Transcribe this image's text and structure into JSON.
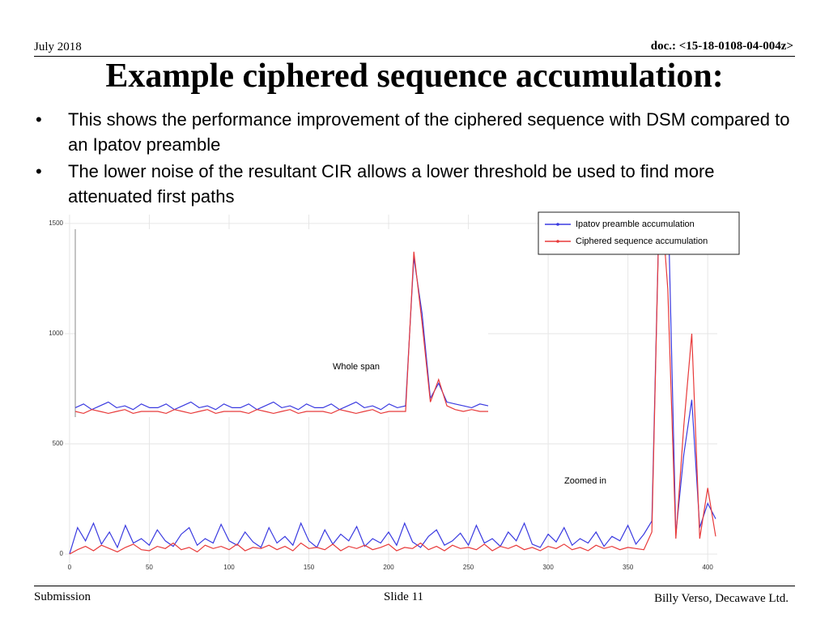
{
  "header": {
    "date": "July 2018",
    "doc": "doc.: <15-18-0108-04-004z>"
  },
  "title": "Example ciphered sequence accumulation:",
  "bullets": [
    "This shows the performance improvement of the ciphered sequence with DSM compared to an Ipatov preamble",
    "The lower noise of the resultant CIR allows a lower threshold be used to find more attenuated first paths"
  ],
  "footer": {
    "left": "Submission",
    "center": "Slide 11",
    "right": "Billy Verso,  Decawave Ltd."
  },
  "chart_data": [
    {
      "type": "line",
      "annotation": "Zoomed in",
      "x": [
        0,
        5,
        10,
        15,
        20,
        25,
        30,
        35,
        40,
        45,
        50,
        55,
        60,
        65,
        70,
        75,
        80,
        85,
        90,
        95,
        100,
        105,
        110,
        115,
        120,
        125,
        130,
        135,
        140,
        145,
        150,
        155,
        160,
        165,
        170,
        175,
        180,
        185,
        190,
        195,
        200,
        205,
        210,
        215,
        220,
        225,
        230,
        235,
        240,
        245,
        250,
        255,
        260,
        265,
        270,
        275,
        280,
        285,
        290,
        295,
        300,
        305,
        310,
        315,
        320,
        325,
        330,
        335,
        340,
        345,
        350,
        355,
        360,
        365,
        370,
        375,
        380,
        385,
        390,
        395,
        400,
        405
      ],
      "series": [
        {
          "name": "Ipatov preamble accumulation",
          "color": "#3a3ae0",
          "values": [
            0,
            120,
            60,
            140,
            45,
            100,
            30,
            130,
            50,
            70,
            40,
            110,
            60,
            35,
            90,
            120,
            40,
            70,
            50,
            135,
            60,
            40,
            100,
            55,
            30,
            120,
            50,
            80,
            40,
            140,
            60,
            30,
            110,
            45,
            90,
            60,
            125,
            35,
            70,
            50,
            100,
            40,
            140,
            55,
            30,
            80,
            110,
            40,
            60,
            95,
            40,
            130,
            50,
            70,
            35,
            100,
            60,
            140,
            45,
            30,
            90,
            55,
            120,
            40,
            70,
            50,
            100,
            35,
            80,
            60,
            130,
            45,
            90,
            150,
            1700,
            1650,
            90,
            450,
            700,
            120,
            230,
            160
          ]
        },
        {
          "name": "Ciphered sequence accumulation",
          "color": "#e83a3a",
          "values": [
            0,
            20,
            35,
            15,
            40,
            25,
            10,
            30,
            45,
            20,
            15,
            35,
            25,
            50,
            20,
            30,
            10,
            40,
            25,
            35,
            20,
            45,
            15,
            30,
            25,
            40,
            20,
            35,
            15,
            50,
            25,
            30,
            20,
            45,
            15,
            35,
            25,
            40,
            20,
            30,
            45,
            15,
            30,
            25,
            50,
            20,
            35,
            15,
            40,
            25,
            30,
            20,
            45,
            15,
            35,
            25,
            40,
            20,
            30,
            15,
            35,
            25,
            45,
            20,
            30,
            15,
            40,
            25,
            35,
            20,
            30,
            25,
            20,
            100,
            1700,
            1200,
            70,
            580,
            1000,
            70,
            300,
            80
          ]
        }
      ],
      "xlim": [
        -3,
        406
      ],
      "ylim": [
        -40,
        1540
      ],
      "xticks": [
        0,
        50,
        100,
        150,
        200,
        250,
        300,
        350,
        400
      ],
      "yticks": [
        0,
        500,
        1000,
        1500
      ],
      "grid": true,
      "legend": "upper right"
    },
    {
      "type": "line",
      "annotation": "Whole span",
      "x": [
        0,
        2,
        4,
        6,
        8,
        10,
        12,
        14,
        16,
        18,
        20,
        22,
        24,
        26,
        28,
        30,
        32,
        34,
        36,
        38,
        40,
        42,
        44,
        46,
        48,
        50,
        52,
        54,
        56,
        58,
        60,
        62,
        64,
        66,
        68,
        70,
        72,
        74,
        76,
        78,
        80,
        82,
        84,
        86,
        88,
        90,
        92,
        94,
        96,
        98,
        100
      ],
      "series": [
        {
          "color": "#3a3ae0",
          "values": [
            5,
            7,
            4,
            6,
            8,
            5,
            6,
            4,
            7,
            5,
            5,
            7,
            4,
            6,
            8,
            5,
            6,
            4,
            7,
            5,
            5,
            7,
            4,
            6,
            8,
            5,
            6,
            4,
            7,
            5,
            5,
            7,
            4,
            6,
            8,
            5,
            6,
            4,
            7,
            5,
            6,
            85,
            55,
            10,
            18,
            8,
            7,
            6,
            5,
            7,
            6
          ]
        },
        {
          "color": "#e83a3a",
          "values": [
            3,
            2,
            4,
            3,
            2,
            3,
            4,
            2,
            3,
            3,
            3,
            2,
            4,
            3,
            2,
            3,
            4,
            2,
            3,
            3,
            3,
            2,
            4,
            3,
            2,
            3,
            4,
            2,
            3,
            3,
            3,
            2,
            4,
            3,
            2,
            3,
            4,
            2,
            3,
            3,
            3,
            88,
            50,
            8,
            20,
            6,
            4,
            3,
            4,
            3,
            3
          ]
        }
      ],
      "xlim": [
        0,
        100
      ],
      "ylim": [
        0,
        100
      ]
    }
  ]
}
